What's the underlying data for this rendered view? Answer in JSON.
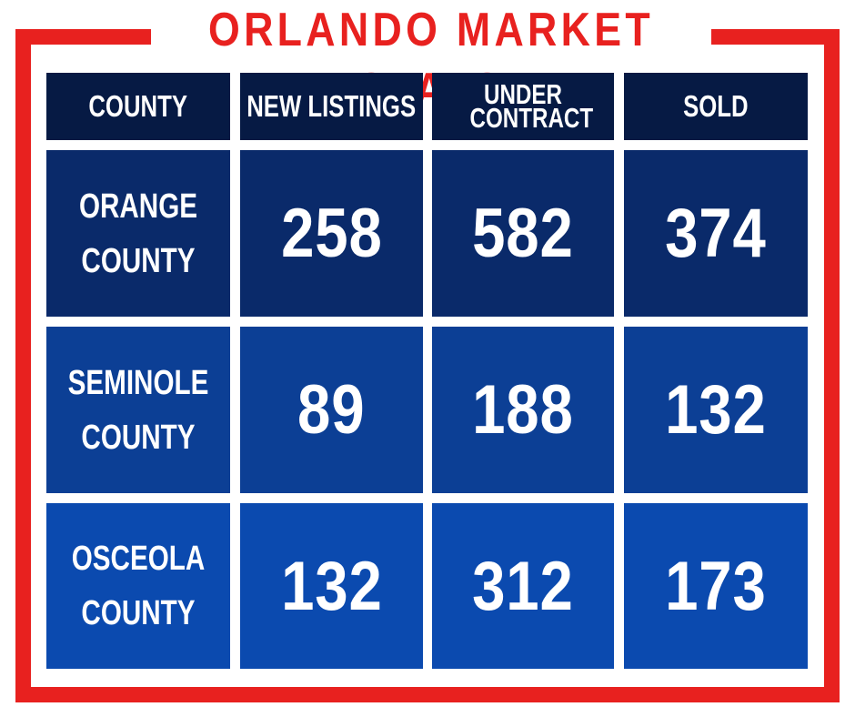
{
  "title": "ORLANDO MARKET STATS",
  "colors": {
    "accent_red": "#e8211f",
    "header_navy": "#061a44",
    "row_orange_county": "#0a2a6a",
    "row_seminole_county": "#0c3f95",
    "row_osceola_county": "#0b4aaf",
    "text": "#ffffff"
  },
  "chart_data": {
    "type": "table",
    "title": "ORLANDO MARKET STATS",
    "columns": [
      "COUNTY",
      "NEW LISTINGS",
      "UNDER CONTRACT",
      "SOLD"
    ],
    "rows": [
      {
        "county": "ORANGE COUNTY",
        "new_listings": "258",
        "under_contract": "582",
        "sold": "374"
      },
      {
        "county": "SEMINOLE COUNTY",
        "new_listings": "89",
        "under_contract": "188",
        "sold": "132"
      },
      {
        "county": "OSCEOLA COUNTY",
        "new_listings": "132",
        "under_contract": "312",
        "sold": "173"
      }
    ]
  }
}
